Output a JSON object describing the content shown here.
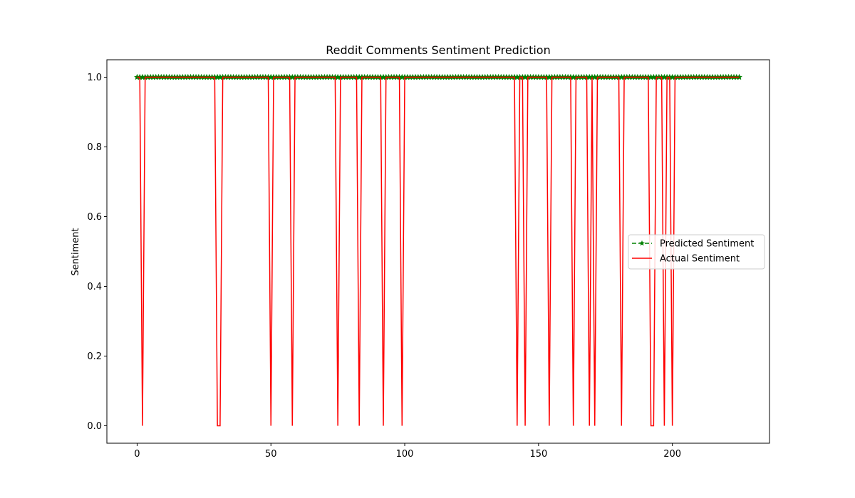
{
  "chart_data": {
    "type": "line",
    "title": "Reddit Comments Sentiment Prediction",
    "xlabel": "",
    "ylabel": "Sentiment",
    "xlim": [
      -11.3,
      236.3
    ],
    "ylim": [
      -0.05,
      1.05
    ],
    "x_ticks": [
      0,
      50,
      100,
      150,
      200
    ],
    "y_ticks": [
      0.0,
      0.2,
      0.4,
      0.6,
      0.8,
      1.0
    ],
    "x_tick_labels": [
      "0",
      "50",
      "100",
      "150",
      "200"
    ],
    "y_tick_labels": [
      "0.0",
      "0.2",
      "0.4",
      "0.6",
      "0.8",
      "1.0"
    ],
    "grid": false,
    "legend_position": "center-right",
    "n_points": 226,
    "series": [
      {
        "name": "Predicted Sentiment",
        "style": "dashed-star",
        "color": "#008000",
        "x_start": 0,
        "x_end": 225,
        "values_constant": 1.0
      },
      {
        "name": "Actual Sentiment",
        "style": "solid",
        "color": "#ff0000",
        "x_start": 0,
        "x_end": 225,
        "baseline": 1.0,
        "zero_indices": [
          2,
          30,
          31,
          50,
          58,
          75,
          83,
          92,
          99,
          142,
          145,
          154,
          163,
          169,
          171,
          181,
          192,
          193,
          197,
          200
        ]
      }
    ]
  }
}
